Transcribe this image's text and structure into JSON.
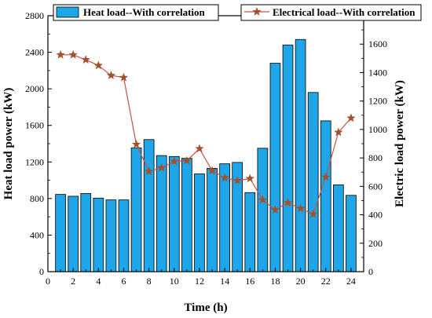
{
  "chart_data": {
    "type": "bar+line",
    "x": [
      1,
      2,
      3,
      4,
      5,
      6,
      7,
      8,
      9,
      10,
      11,
      12,
      13,
      14,
      15,
      16,
      17,
      18,
      19,
      20,
      21,
      22,
      23,
      24
    ],
    "series": [
      {
        "name": "Heat load--With correlation",
        "type": "bar",
        "axis": "left",
        "color": "#1EA6E8",
        "values": [
          845,
          825,
          855,
          805,
          785,
          785,
          1355,
          1445,
          1270,
          1260,
          1240,
          1070,
          1130,
          1180,
          1195,
          865,
          1350,
          2280,
          2480,
          2540,
          1960,
          1650,
          950,
          835
        ]
      },
      {
        "name": "Electrical load--With correlation",
        "type": "line",
        "axis": "right",
        "color": "#C8504A",
        "marker_color": "#A0522D",
        "values": [
          1525,
          1525,
          1490,
          1450,
          1380,
          1365,
          895,
          705,
          730,
          775,
          780,
          865,
          710,
          660,
          640,
          655,
          505,
          435,
          485,
          445,
          405,
          665,
          980,
          1080
        ]
      }
    ],
    "xlabel": "Time (h)",
    "ylabel_left": "Heat load power (kW)",
    "ylabel_right": "Electric load power (kW)",
    "xlim": [
      0,
      25
    ],
    "ylim_left": [
      0,
      2800
    ],
    "ylim_right": [
      0,
      1800
    ],
    "xticks": [
      0,
      2,
      4,
      6,
      8,
      10,
      12,
      14,
      16,
      18,
      20,
      22,
      24
    ],
    "yticks_left": [
      0,
      400,
      800,
      1200,
      1600,
      2000,
      2400,
      2800
    ],
    "yticks_right": [
      0,
      200,
      400,
      600,
      800,
      1000,
      1200,
      1400,
      1600
    ],
    "grid": false,
    "legend_placement": "top"
  }
}
